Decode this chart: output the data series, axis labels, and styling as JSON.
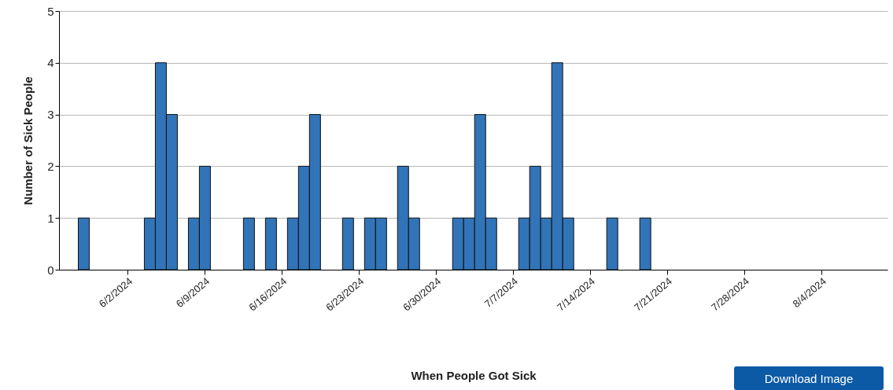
{
  "chart_data": {
    "type": "bar",
    "xlabel": "When People Got Sick",
    "ylabel": "Number of Sick People",
    "x": [
      "2024-05-29",
      "2024-06-04",
      "2024-06-05",
      "2024-06-06",
      "2024-06-08",
      "2024-06-09",
      "2024-06-13",
      "2024-06-15",
      "2024-06-17",
      "2024-06-18",
      "2024-06-19",
      "2024-06-22",
      "2024-06-24",
      "2024-06-25",
      "2024-06-27",
      "2024-06-28",
      "2024-07-02",
      "2024-07-03",
      "2024-07-04",
      "2024-07-05",
      "2024-07-08",
      "2024-07-09",
      "2024-07-10",
      "2024-07-11",
      "2024-07-12",
      "2024-07-16",
      "2024-07-19"
    ],
    "values": [
      1,
      1,
      4,
      3,
      1,
      2,
      1,
      1,
      1,
      2,
      3,
      1,
      1,
      1,
      2,
      1,
      1,
      1,
      3,
      1,
      1,
      2,
      1,
      4,
      1,
      1,
      1
    ],
    "color": "#3174b8",
    "xlim": [
      "2024-05-26T18:00",
      "2024-08-10T00:00"
    ],
    "xticks": [
      {
        "value": "2024-06-02",
        "label": "6/2/2024"
      },
      {
        "value": "2024-06-09",
        "label": "6/9/2024"
      },
      {
        "value": "2024-06-16",
        "label": "6/16/2024"
      },
      {
        "value": "2024-06-23",
        "label": "6/23/2024"
      },
      {
        "value": "2024-06-30",
        "label": "6/30/2024"
      },
      {
        "value": "2024-07-07",
        "label": "7/7/2024"
      },
      {
        "value": "2024-07-14",
        "label": "7/14/2024"
      },
      {
        "value": "2024-07-21",
        "label": "7/21/2024"
      },
      {
        "value": "2024-07-28",
        "label": "7/28/2024"
      },
      {
        "value": "2024-08-04",
        "label": "8/4/2024"
      }
    ],
    "ylim": [
      0,
      5
    ],
    "yticks": [
      0,
      1,
      2,
      3,
      4,
      5
    ],
    "grid": "y",
    "annotations": [
      "Download Image"
    ]
  }
}
